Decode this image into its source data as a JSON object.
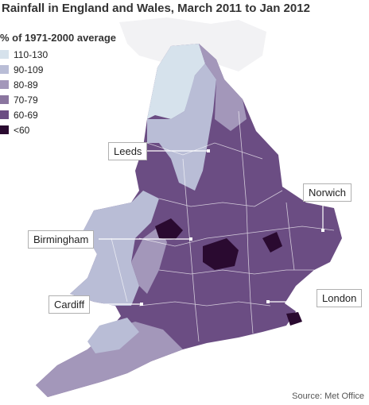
{
  "title": "Rainfall in England and Wales, March 2011 to Jan 2012",
  "legend": {
    "title": "% of 1971-2000 average",
    "items": [
      {
        "label": "110-130",
        "color": "#d6e2ec"
      },
      {
        "label": "90-109",
        "color": "#b9bdd6"
      },
      {
        "label": "80-89",
        "color": "#a397ba"
      },
      {
        "label": "70-79",
        "color": "#8a759f"
      },
      {
        "label": "60-69",
        "color": "#6b4d83"
      },
      {
        "label": "<60",
        "color": "#2a0a30"
      }
    ]
  },
  "cities": {
    "leeds": "Leeds",
    "norwich": "Norwich",
    "birmingham": "Birmingham",
    "cardiff": "Cardiff",
    "london": "London"
  },
  "source": "Source: Met Office",
  "colors": {
    "background": "#ffffff",
    "scotland_land": "#f2f2f4",
    "boundary": "#ffffff",
    "annotation_line": "#ffffff"
  }
}
